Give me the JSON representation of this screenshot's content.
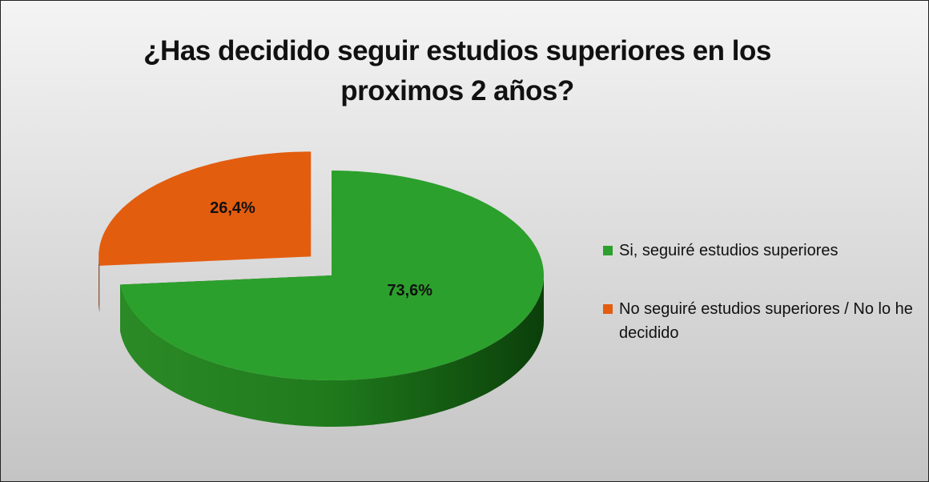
{
  "chart_data": {
    "type": "pie",
    "title": "¿Has decidido seguir estudios superiores en los proximos 2 años?",
    "series": [
      {
        "name": "Si, seguiré estudios superiores",
        "color": "#2ca02c"
      },
      {
        "name": "No seguiré estudios superiores / No lo he decidido",
        "color": "#e35d0e"
      }
    ],
    "values": [
      73.6,
      26.4
    ],
    "value_labels": [
      "73,6%",
      "26,4%"
    ],
    "legend": "right"
  }
}
